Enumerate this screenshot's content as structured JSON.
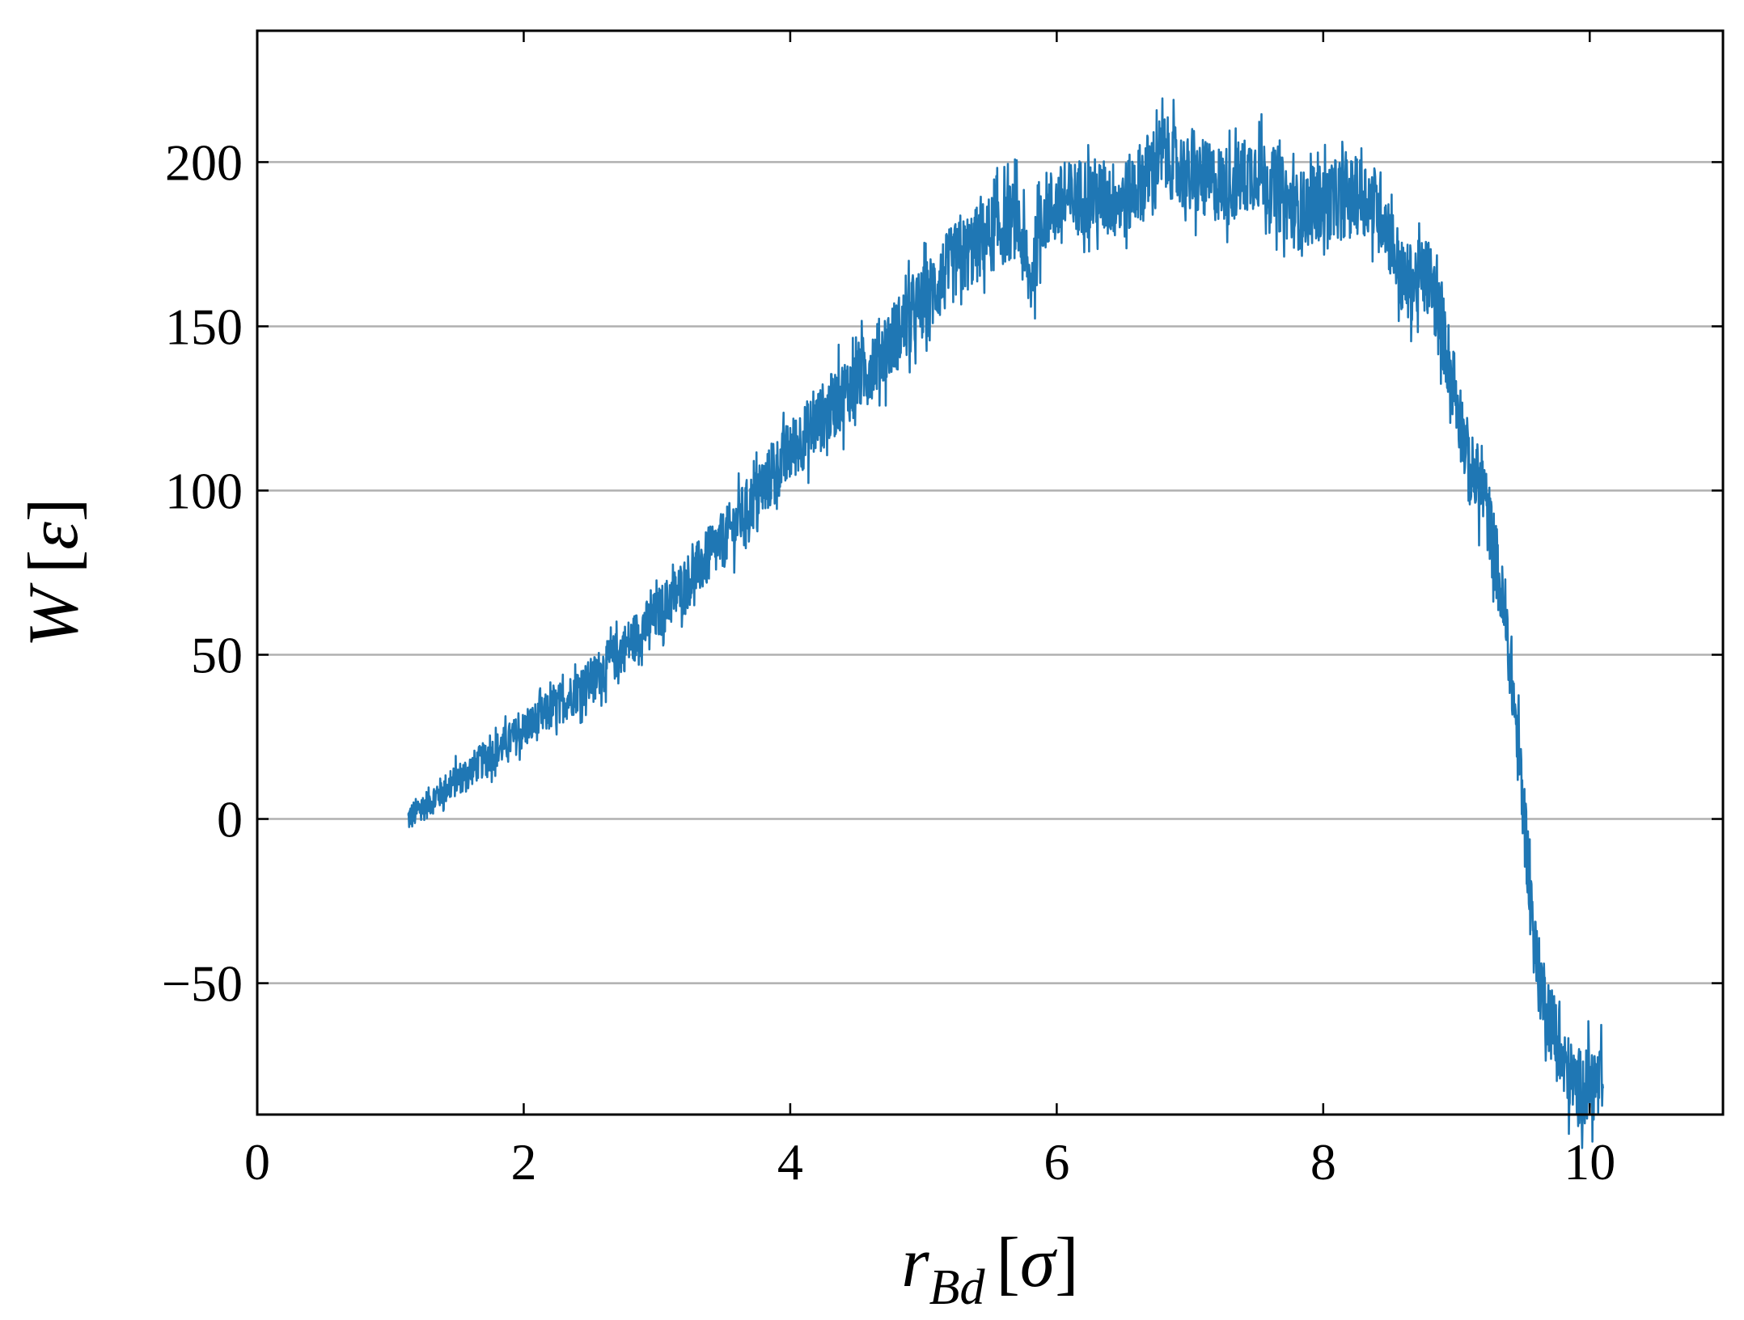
{
  "chart_data": {
    "type": "line",
    "title": "",
    "xlabel": {
      "main": "r",
      "subscript": "Bd",
      "unit": "σ"
    },
    "ylabel": {
      "main": "W",
      "unit": "ε"
    },
    "xlim": [
      0,
      11
    ],
    "ylim": [
      -90,
      240
    ],
    "x_ticks": [
      0,
      2,
      4,
      6,
      8,
      10
    ],
    "y_ticks": [
      -50,
      0,
      50,
      100,
      150,
      200
    ],
    "x_tick_labels": [
      "0",
      "2",
      "4",
      "6",
      "8",
      "10"
    ],
    "y_tick_labels": [
      "−50",
      "0",
      "50",
      "100",
      "150",
      "200"
    ],
    "grid": "horizontal",
    "legend": "none",
    "series": [
      {
        "color": "#1f77b4",
        "noise_amplitude": 12,
        "points": [
          [
            1.13,
            0
          ],
          [
            1.5,
            12
          ],
          [
            2.0,
            27
          ],
          [
            2.5,
            42
          ],
          [
            3.0,
            62
          ],
          [
            3.5,
            85
          ],
          [
            4.0,
            112
          ],
          [
            4.3,
            125
          ],
          [
            4.7,
            143
          ],
          [
            5.0,
            157
          ],
          [
            5.2,
            168
          ],
          [
            5.5,
            178
          ],
          [
            5.7,
            183
          ],
          [
            5.8,
            163
          ],
          [
            5.9,
            185
          ],
          [
            6.2,
            190
          ],
          [
            6.5,
            188
          ],
          [
            6.8,
            203
          ],
          [
            7.0,
            195
          ],
          [
            7.3,
            193
          ],
          [
            7.5,
            198
          ],
          [
            7.8,
            185
          ],
          [
            8.0,
            188
          ],
          [
            8.3,
            190
          ],
          [
            8.45,
            185
          ],
          [
            8.6,
            163
          ],
          [
            8.8,
            165
          ],
          [
            8.9,
            148
          ],
          [
            9.0,
            128
          ],
          [
            9.1,
            106
          ],
          [
            9.2,
            100
          ],
          [
            9.3,
            78
          ],
          [
            9.4,
            50
          ],
          [
            9.5,
            5
          ],
          [
            9.6,
            -45
          ],
          [
            9.7,
            -60
          ],
          [
            9.8,
            -75
          ],
          [
            9.9,
            -82
          ],
          [
            10.0,
            -80
          ],
          [
            10.1,
            -82
          ]
        ]
      }
    ]
  }
}
